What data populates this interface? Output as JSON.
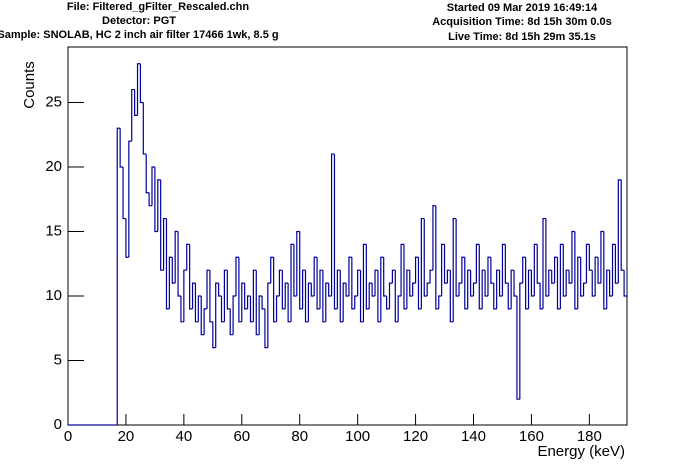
{
  "chart_data": {
    "type": "histogram",
    "header_left": [
      "File: Filtered_gFilter_Rescaled.chn",
      "Detector: PGT",
      "Sample: SNOLAB, HC 2 inch air filter 17466 1wk, 8.5 g"
    ],
    "header_right": [
      "Started 09 Mar 2019 16:49:14",
      "Acquisition Time: 8d 15h 30m 0.0s",
      "Live Time: 8d 15h 29m 35.1s"
    ],
    "x_label": "Energy (keV)",
    "y_label": "Counts",
    "color": "#000099",
    "xlim": [
      0,
      193
    ],
    "ylim": [
      0,
      29.3
    ],
    "xticks": [
      0,
      20,
      40,
      60,
      80,
      100,
      120,
      140,
      160,
      180
    ],
    "yticks": [
      0,
      5,
      10,
      15,
      20,
      25
    ],
    "bins": [
      0,
      1,
      2,
      3,
      4,
      5,
      6,
      7,
      8,
      9,
      10,
      11,
      12,
      13,
      14,
      15,
      16,
      17,
      18,
      19,
      20,
      21,
      22,
      23,
      24,
      25,
      26,
      27,
      28,
      29,
      30,
      31,
      32,
      33,
      34,
      35,
      36,
      37,
      38,
      39,
      40,
      41,
      42,
      43,
      44,
      45,
      46,
      47,
      48,
      49,
      50,
      51,
      52,
      53,
      54,
      55,
      56,
      57,
      58,
      59,
      60,
      61,
      62,
      63,
      64,
      65,
      66,
      67,
      68,
      69,
      70,
      71,
      72,
      73,
      74,
      75,
      76,
      77,
      78,
      79,
      80,
      81,
      82,
      83,
      84,
      85,
      86,
      87,
      88,
      89,
      90,
      91,
      92,
      93,
      94,
      95,
      96,
      97,
      98,
      99,
      100,
      101,
      102,
      103,
      104,
      105,
      106,
      107,
      108,
      109,
      110,
      111,
      112,
      113,
      114,
      115,
      116,
      117,
      118,
      119,
      120,
      121,
      122,
      123,
      124,
      125,
      126,
      127,
      128,
      129,
      130,
      131,
      132,
      133,
      134,
      135,
      136,
      137,
      138,
      139,
      140,
      141,
      142,
      143,
      144,
      145,
      146,
      147,
      148,
      149,
      150,
      151,
      152,
      153,
      154,
      155,
      156,
      157,
      158,
      159,
      160,
      161,
      162,
      163,
      164,
      165,
      166,
      167,
      168,
      169,
      170,
      171,
      172,
      173,
      174,
      175,
      176,
      177,
      178,
      179,
      180,
      181,
      182,
      183,
      184,
      185,
      186,
      187,
      188,
      189,
      190,
      191,
      192,
      193
    ],
    "values": [
      0,
      0,
      0,
      0,
      0,
      0,
      0,
      0,
      0,
      0,
      0,
      0,
      0,
      0,
      0,
      0,
      0,
      23,
      20,
      16,
      13,
      22,
      26,
      24,
      28,
      25,
      21,
      18,
      17,
      20,
      15,
      19,
      12,
      16,
      9,
      13,
      11,
      15,
      10,
      8,
      12,
      14,
      9,
      11,
      8,
      10,
      7,
      9,
      12,
      8,
      6,
      11,
      10,
      8,
      12,
      9,
      7,
      10,
      13,
      8,
      11,
      9,
      10,
      8,
      12,
      7,
      10,
      9,
      6,
      11,
      13,
      8,
      10,
      12,
      9,
      11,
      8,
      14,
      10,
      15,
      9,
      12,
      8,
      11,
      10,
      13,
      9,
      12,
      8,
      11,
      10,
      21,
      9,
      12,
      8,
      11,
      10,
      13,
      9,
      10,
      12,
      8,
      14,
      9,
      11,
      10,
      12,
      8,
      13,
      10,
      9,
      11,
      12,
      8,
      10,
      14,
      9,
      12,
      10,
      11,
      13,
      9,
      16,
      10,
      11,
      12,
      17,
      9,
      10,
      14,
      11,
      12,
      8,
      16,
      10,
      11,
      13,
      9,
      12,
      10,
      11,
      14,
      9,
      12,
      10,
      13,
      11,
      9,
      12,
      10,
      14,
      11,
      9,
      12,
      10,
      2,
      11,
      13,
      9,
      12,
      10,
      14,
      11,
      9,
      16,
      10,
      12,
      11,
      13,
      9,
      14,
      10,
      12,
      11,
      15,
      9,
      13,
      10,
      11,
      14,
      12,
      10,
      13,
      11,
      15,
      9,
      12,
      10,
      14,
      11,
      19,
      12,
      10
    ]
  }
}
